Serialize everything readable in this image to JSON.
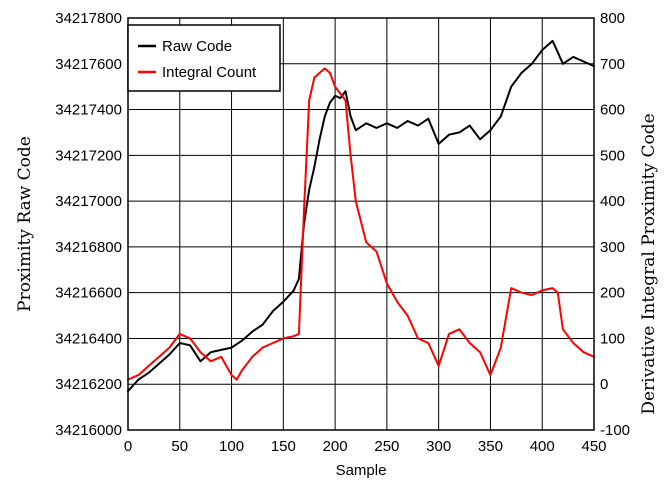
{
  "chart_data": {
    "type": "line",
    "xlabel": "Sample",
    "ylabel_left": "Proximity Raw Code",
    "ylabel_right": "Derivative Integral Proximity Code",
    "xlim": [
      0,
      450
    ],
    "ylim_left": [
      34216000,
      34217800
    ],
    "ylim_right": [
      -100,
      800
    ],
    "x_ticks": [
      "0",
      "50",
      "100",
      "150",
      "200",
      "250",
      "300",
      "350",
      "400",
      "450"
    ],
    "y_left_ticks": [
      "34216000",
      "34216200",
      "34216400",
      "34216600",
      "34216800",
      "34217000",
      "34217200",
      "34217400",
      "34217600",
      "34217800"
    ],
    "y_right_ticks": [
      "-100",
      "0",
      "100",
      "200",
      "300",
      "400",
      "500",
      "600",
      "700",
      "800"
    ],
    "grid": true,
    "legend_position": "top-left",
    "series": [
      {
        "name": "Raw Code",
        "axis": "left",
        "color": "#000000",
        "x": [
          0,
          10,
          20,
          30,
          40,
          50,
          60,
          70,
          80,
          90,
          100,
          110,
          120,
          130,
          140,
          150,
          160,
          165,
          170,
          175,
          180,
          185,
          190,
          195,
          200,
          205,
          210,
          215,
          220,
          230,
          240,
          250,
          260,
          270,
          280,
          290,
          300,
          310,
          320,
          330,
          340,
          350,
          360,
          370,
          380,
          390,
          400,
          410,
          415,
          420,
          430,
          440,
          450
        ],
        "y": [
          34216170,
          34216220,
          34216250,
          34216290,
          34216330,
          34216380,
          34216370,
          34216300,
          34216340,
          34216350,
          34216360,
          34216390,
          34216430,
          34216460,
          34216520,
          34216560,
          34216610,
          34216660,
          34216900,
          34217050,
          34217150,
          34217270,
          34217370,
          34217430,
          34217460,
          34217450,
          34217480,
          34217370,
          34217310,
          34217340,
          34217320,
          34217340,
          34217320,
          34217350,
          34217330,
          34217360,
          34217250,
          34217290,
          34217300,
          34217330,
          34217270,
          34217310,
          34217370,
          34217500,
          34217560,
          34217600,
          34217660,
          34217700,
          34217650,
          34217600,
          34217630,
          34217610,
          34217590
        ]
      },
      {
        "name": "Integral Count",
        "axis": "right",
        "color": "#ff0000",
        "x": [
          0,
          10,
          20,
          30,
          40,
          50,
          60,
          70,
          80,
          90,
          100,
          105,
          110,
          120,
          130,
          140,
          150,
          160,
          165,
          170,
          175,
          180,
          185,
          190,
          195,
          200,
          210,
          215,
          220,
          230,
          240,
          250,
          260,
          270,
          280,
          290,
          300,
          310,
          320,
          330,
          340,
          350,
          360,
          370,
          380,
          390,
          400,
          410,
          415,
          420,
          430,
          440,
          450
        ],
        "y": [
          10,
          20,
          40,
          60,
          80,
          110,
          100,
          70,
          50,
          60,
          20,
          10,
          30,
          60,
          80,
          90,
          100,
          105,
          110,
          380,
          620,
          670,
          680,
          690,
          680,
          650,
          620,
          500,
          400,
          310,
          290,
          220,
          180,
          150,
          100,
          90,
          40,
          110,
          120,
          90,
          70,
          20,
          80,
          210,
          200,
          195,
          205,
          210,
          200,
          120,
          90,
          70,
          60
        ]
      }
    ]
  }
}
